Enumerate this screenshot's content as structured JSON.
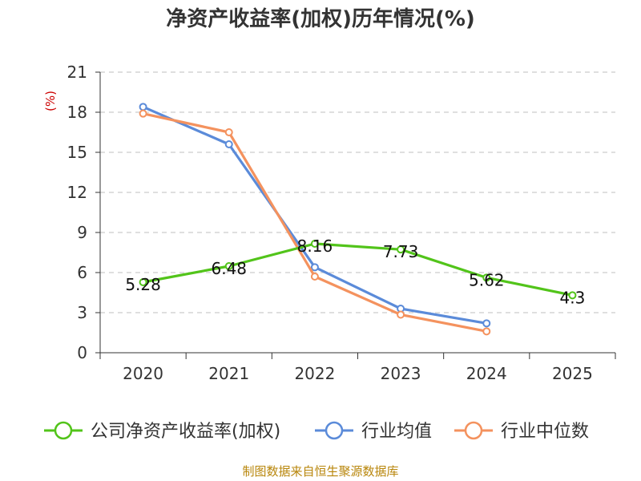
{
  "chart_data": {
    "type": "line",
    "title": "净资产收益率(加权)历年情况(%)",
    "ylabel": "(%)",
    "xlabel": "",
    "ylim": [
      0,
      21
    ],
    "yticks": [
      0,
      3,
      6,
      9,
      12,
      15,
      18,
      21
    ],
    "grid": true,
    "categories": [
      "2020",
      "2021",
      "2022",
      "2023",
      "2024",
      "2025"
    ],
    "series": [
      {
        "name": "公司净资产收益率(加权)",
        "color": "#52c41a",
        "values": [
          5.28,
          6.48,
          8.16,
          7.73,
          5.62,
          4.3
        ],
        "labels": [
          "5.28",
          "6.48",
          "8.16",
          "7.73",
          "5.62",
          "4.3"
        ]
      },
      {
        "name": "行业均值",
        "color": "#5b8bd9",
        "values": [
          18.4,
          15.6,
          6.4,
          3.3,
          2.2,
          null
        ]
      },
      {
        "name": "行业中位数",
        "color": "#f4925e",
        "values": [
          17.9,
          16.5,
          5.7,
          2.85,
          1.6,
          null
        ]
      }
    ],
    "legend_position": "bottom",
    "source": "制图数据来自恒生聚源数据库"
  }
}
